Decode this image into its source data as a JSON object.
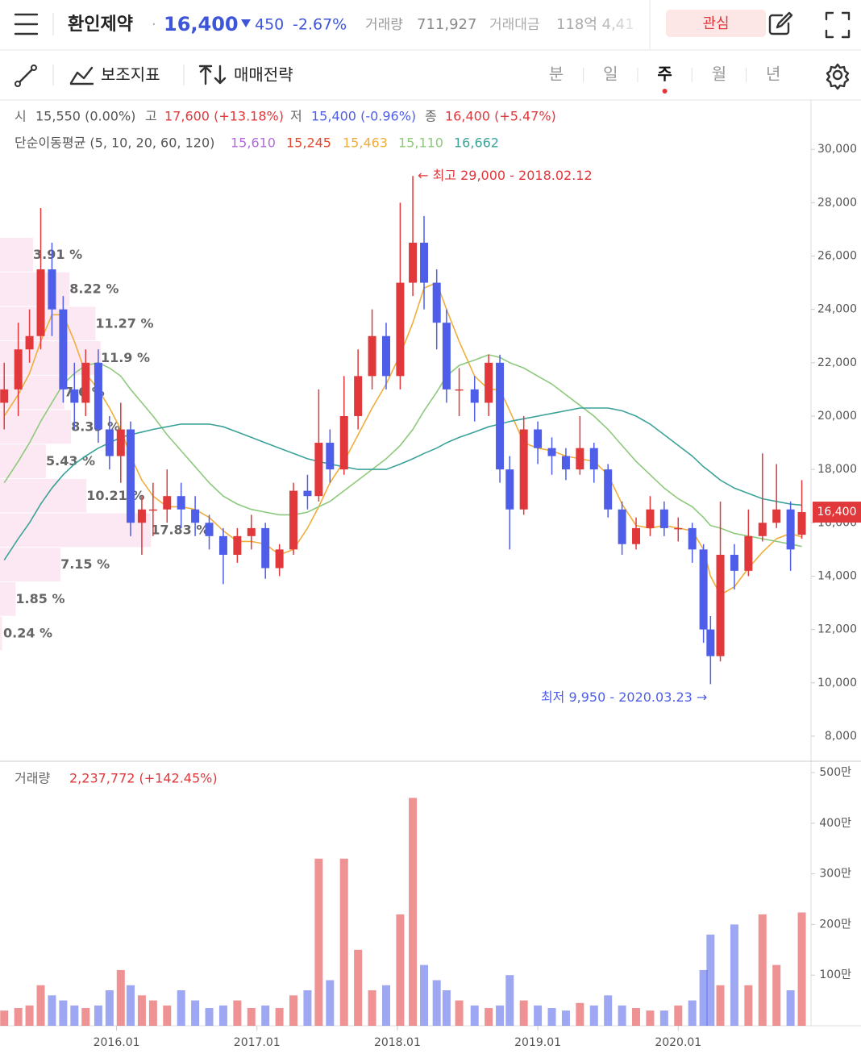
{
  "header": {
    "title": "환인제약",
    "separator": "·",
    "price": "16,400",
    "change": "450",
    "change_pct": "-2.67%",
    "volume_label": "거래량",
    "volume": "711,927",
    "amount_label": "거래대금",
    "amount": "118억 4,41",
    "watch_button": "관심"
  },
  "toolbar": {
    "indicators": "보조지표",
    "strategy": "매매전략",
    "periods": [
      "분",
      "일",
      "주",
      "월",
      "년"
    ],
    "active_period": 2
  },
  "ohlc": [
    {
      "label": "시",
      "value": "15,550 (0.00%)",
      "color": "#555555"
    },
    {
      "label": "고",
      "value": "17,600 (+13.18%)",
      "color": "#e0383b"
    },
    {
      "label": "저",
      "value": "15,400 (-0.96%)",
      "color": "#4e5ee8"
    },
    {
      "label": "종",
      "value": "16,400 (+5.47%)",
      "color": "#e0383b"
    }
  ],
  "chart_data": {
    "type": "candlestick",
    "ma_title": "단순이동평균 (5, 10, 20, 60, 120)",
    "up_color": "#e0383b",
    "down_color": "#4e5ee8",
    "xlim": [
      2015.17,
      2020.94
    ],
    "xticks": [
      {
        "value": 2016.0,
        "label": "2016.01"
      },
      {
        "value": 2017.0,
        "label": "2017.01"
      },
      {
        "value": 2018.0,
        "label": "2018.01"
      },
      {
        "value": 2019.0,
        "label": "2019.01"
      },
      {
        "value": 2020.0,
        "label": "2020.01"
      }
    ],
    "ylim": [
      7060,
      31850
    ],
    "yticks": [
      {
        "value": 8000,
        "label": "8,000"
      },
      {
        "value": 10000,
        "label": "10,000"
      },
      {
        "value": 12000,
        "label": "12,000"
      },
      {
        "value": 14000,
        "label": "14,000"
      },
      {
        "value": 16000,
        "label": "16,000"
      },
      {
        "value": 18000,
        "label": "18,000"
      },
      {
        "value": 20000,
        "label": "20,000"
      },
      {
        "value": 22000,
        "label": "22,000"
      },
      {
        "value": 24000,
        "label": "24,000"
      },
      {
        "value": 26000,
        "label": "26,000"
      },
      {
        "value": 28000,
        "label": "28,000"
      },
      {
        "value": 30000,
        "label": "30,000"
      }
    ],
    "current_price": {
      "value": 16400,
      "label": "16,400",
      "color": "#e0383b"
    },
    "high_annotation": {
      "text": "← 최고 29,000 - 2018.02.12",
      "index": 32,
      "color": "#e0383b"
    },
    "low_annotation": {
      "text": "최저 9,950 - 2020.03.23 →",
      "index": 55,
      "color": "#4e5ee8"
    },
    "x": [
      2015.2,
      2015.3,
      2015.38,
      2015.46,
      2015.54,
      2015.62,
      2015.7,
      2015.78,
      2015.87,
      2015.95,
      2016.03,
      2016.1,
      2016.18,
      2016.26,
      2016.36,
      2016.46,
      2016.56,
      2016.66,
      2016.76,
      2016.86,
      2016.96,
      2017.06,
      2017.16,
      2017.26,
      2017.36,
      2017.44,
      2017.52,
      2017.62,
      2017.72,
      2017.82,
      2017.92,
      2018.02,
      2018.11,
      2018.19,
      2018.28,
      2018.35,
      2018.44,
      2018.55,
      2018.65,
      2018.73,
      2018.8,
      2018.9,
      2019.0,
      2019.1,
      2019.2,
      2019.3,
      2019.4,
      2019.5,
      2019.6,
      2019.7,
      2019.8,
      2019.9,
      2020.0,
      2020.1,
      2020.18,
      2020.23,
      2020.3,
      2020.4,
      2020.5,
      2020.6,
      2020.7,
      2020.8,
      2020.88
    ],
    "open": [
      20500,
      21000,
      22500,
      23000,
      25500,
      24000,
      21000,
      20500,
      22000,
      19500,
      18500,
      19500,
      16000,
      16500,
      16500,
      17000,
      16500,
      16000,
      15500,
      14800,
      15500,
      15800,
      14300,
      15000,
      17200,
      17000,
      19000,
      18000,
      20000,
      21500,
      23000,
      21500,
      25000,
      26500,
      25000,
      23500,
      21000,
      21000,
      20500,
      22000,
      18000,
      16500,
      19500,
      18800,
      18500,
      18000,
      18800,
      18000,
      16500,
      15200,
      15800,
      16500,
      15800,
      15800,
      15000,
      12000,
      11000,
      14800,
      14200,
      15500,
      16000,
      16500,
      15550
    ],
    "high": [
      22000,
      23500,
      24000,
      27800,
      26500,
      24500,
      22000,
      22500,
      22500,
      20000,
      20500,
      19800,
      17000,
      17500,
      18000,
      17500,
      17000,
      16300,
      15800,
      15800,
      16300,
      16000,
      15200,
      17500,
      17800,
      21000,
      19500,
      21500,
      22500,
      24000,
      23500,
      28000,
      29000,
      27500,
      25500,
      24000,
      21800,
      21500,
      22300,
      22300,
      18500,
      20000,
      19800,
      19200,
      18800,
      20000,
      19000,
      18200,
      16800,
      16200,
      17000,
      16800,
      16200,
      16000,
      15200,
      12500,
      16800,
      15200,
      16500,
      18600,
      18200,
      16800,
      17600
    ],
    "low": [
      19500,
      20000,
      22000,
      22500,
      23000,
      20500,
      19500,
      20000,
      19000,
      18000,
      17500,
      15500,
      14800,
      15500,
      16000,
      15800,
      15500,
      15000,
      13700,
      14500,
      15000,
      13900,
      14000,
      14800,
      16500,
      16800,
      17500,
      17800,
      19500,
      21000,
      21000,
      21000,
      24500,
      24000,
      22500,
      20500,
      20000,
      19800,
      20000,
      17500,
      15000,
      16300,
      18200,
      17800,
      17600,
      17800,
      17500,
      16200,
      14800,
      15000,
      15500,
      15500,
      15300,
      14500,
      11500,
      9950,
      10800,
      13500,
      14000,
      15300,
      15800,
      14200,
      15400
    ],
    "close": [
      21000,
      22500,
      23000,
      25500,
      24000,
      21000,
      20500,
      22000,
      19500,
      18500,
      19500,
      16000,
      16500,
      16500,
      17000,
      16500,
      16000,
      15500,
      14800,
      15500,
      15800,
      14300,
      15000,
      17200,
      17000,
      19000,
      18000,
      20000,
      21500,
      23000,
      21500,
      25000,
      26500,
      25000,
      23500,
      21000,
      21000,
      20500,
      22000,
      18000,
      16500,
      19500,
      18800,
      18500,
      18000,
      18800,
      18000,
      16500,
      15200,
      15800,
      16500,
      15800,
      15800,
      15000,
      12000,
      11000,
      14800,
      14200,
      15500,
      16000,
      16500,
      15000,
      16400
    ],
    "moving_averages": [
      {
        "label": "15,610",
        "color": "#b36bdb"
      },
      {
        "label": "15,245",
        "color": "#e5482f"
      },
      {
        "label": "15,463",
        "color": "#efae3c",
        "values": [
          20000,
          20800,
          21600,
          22800,
          23800,
          23800,
          22800,
          21600,
          21000,
          20300,
          19500,
          18500,
          17600,
          17000,
          16600,
          16600,
          16500,
          16200,
          15700,
          15300,
          15300,
          15200,
          14800,
          15000,
          15800,
          16600,
          17500,
          18300,
          19300,
          20300,
          21200,
          22300,
          23500,
          24800,
          25000,
          24000,
          22800,
          21500,
          21000,
          21000,
          20200,
          19000,
          18800,
          18700,
          18500,
          18400,
          18300,
          17800,
          16700,
          15900,
          15800,
          15900,
          15800,
          15700,
          15000,
          14000,
          13300,
          13600,
          14300,
          14900,
          15400,
          15600,
          15463
        ]
      },
      {
        "label": "15,110",
        "color": "#8dc97c",
        "values": [
          17500,
          18300,
          19000,
          19800,
          20500,
          21200,
          21600,
          21900,
          22000,
          21800,
          21500,
          21000,
          20500,
          20000,
          19300,
          18700,
          18100,
          17500,
          17000,
          16700,
          16500,
          16400,
          16300,
          16300,
          16400,
          16600,
          16800,
          17200,
          17600,
          18000,
          18400,
          18900,
          19500,
          20200,
          20900,
          21500,
          21900,
          22100,
          22300,
          22200,
          22000,
          21800,
          21500,
          21200,
          20800,
          20400,
          20000,
          19500,
          18900,
          18300,
          17800,
          17300,
          16900,
          16600,
          16200,
          15900,
          15800,
          15600,
          15500,
          15400,
          15300,
          15200,
          15110
        ]
      },
      {
        "label": "16,662",
        "color": "#3ba29a",
        "values": [
          14600,
          15400,
          16000,
          16700,
          17300,
          17800,
          18200,
          18500,
          18800,
          19000,
          19200,
          19300,
          19400,
          19500,
          19600,
          19700,
          19700,
          19700,
          19600,
          19400,
          19200,
          19000,
          18800,
          18600,
          18400,
          18300,
          18200,
          18100,
          18000,
          18000,
          18000,
          18200,
          18400,
          18600,
          18800,
          19000,
          19200,
          19400,
          19600,
          19700,
          19800,
          19900,
          20000,
          20100,
          20200,
          20300,
          20300,
          20300,
          20200,
          20000,
          19700,
          19300,
          18900,
          18500,
          18100,
          17900,
          17600,
          17300,
          17100,
          16900,
          16800,
          16700,
          16662
        ]
      }
    ],
    "volume_profile": {
      "color": "#fce8f2",
      "values": [
        3.91,
        8.22,
        11.27,
        11.9,
        7.6,
        8.39,
        5.43,
        10.21,
        17.83,
        7.15,
        1.85,
        0.24
      ],
      "value_labels": [
        "3.91 %",
        "8.22 %",
        "11.27 %",
        "11.9 %",
        "7.6 %",
        "8.39 %",
        "5.43 %",
        "10.21 %",
        "17.83 %",
        "7.15 %",
        "1.85 %",
        "0.24 %"
      ]
    },
    "volume_title": "거래량",
    "volume_summary": "2,237,772 (+142.45%)",
    "volume_ylim": [
      0,
      5160000
    ],
    "volume_yticks": [
      {
        "value": 1000000,
        "label": "100만"
      },
      {
        "value": 2000000,
        "label": "200만"
      },
      {
        "value": 3000000,
        "label": "300만"
      },
      {
        "value": 4000000,
        "label": "400만"
      },
      {
        "value": 5000000,
        "label": "500만"
      }
    ],
    "volume": [
      300000,
      350000,
      400000,
      800000,
      600000,
      500000,
      400000,
      350000,
      400000,
      700000,
      1100000,
      800000,
      600000,
      500000,
      400000,
      700000,
      500000,
      350000,
      400000,
      500000,
      350000,
      400000,
      350000,
      600000,
      700000,
      3300000,
      900000,
      3300000,
      1500000,
      700000,
      800000,
      2200000,
      4500000,
      1200000,
      900000,
      700000,
      500000,
      400000,
      350000,
      400000,
      1000000,
      500000,
      400000,
      350000,
      300000,
      450000,
      400000,
      600000,
      400000,
      350000,
      300000,
      300000,
      400000,
      500000,
      1100000,
      1800000,
      800000,
      2000000,
      800000,
      2200000,
      1200000,
      700000,
      2237772
    ]
  }
}
